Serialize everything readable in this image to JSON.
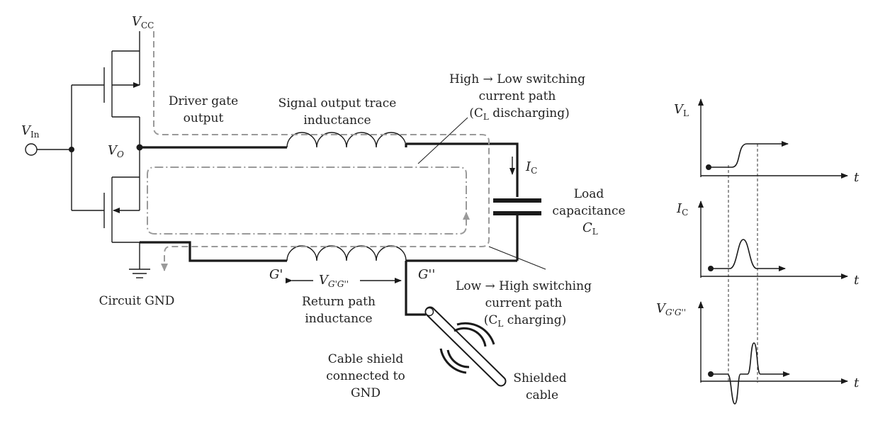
{
  "labels": {
    "vcc_main": "V",
    "vcc_sub": "CC",
    "vin_main": "V",
    "vin_sub": "In",
    "vo_main": "V",
    "vo_sub": "O",
    "driver_gate_output": [
      "Driver gate",
      "output"
    ],
    "signal_trace_inductance": [
      "Signal output trace",
      "inductance"
    ],
    "high_low_path": [
      "High → Low switching",
      "current path"
    ],
    "high_low_path_cond": [
      "(C",
      "L",
      " discharging)"
    ],
    "ic_main": "I",
    "ic_sub": "C",
    "load_capacitance": [
      "Load",
      "capacitance"
    ],
    "cl_main": "C",
    "cl_sub": "L",
    "circuit_gnd": "Circuit GND",
    "g_prime": "G'",
    "g_dprime": "G''",
    "vgg_main": "V",
    "vgg_sub": "G'G''",
    "return_path_inductance": [
      "Return path",
      "inductance"
    ],
    "low_high_path": [
      "Low → High switching",
      "current path"
    ],
    "low_high_path_cond": [
      "(C",
      "L",
      " charging)"
    ],
    "cable_shield": [
      "Cable shield",
      "connected to",
      "GND"
    ],
    "shielded_cable": [
      "Shielded",
      "cable"
    ]
  },
  "waveforms": [
    {
      "name_main": "V",
      "name_sub": "L",
      "time_label": "t",
      "shape": "step"
    },
    {
      "name_main": "I",
      "name_sub": "C",
      "time_label": "t",
      "shape": "pulse"
    },
    {
      "name_main": "V",
      "name_sub": "G'G''",
      "time_label": "t",
      "shape": "bipolar"
    }
  ],
  "colors": {
    "wire": "#1a1a1a",
    "current_path": "#9a9a9a",
    "background": "#ffffff"
  }
}
